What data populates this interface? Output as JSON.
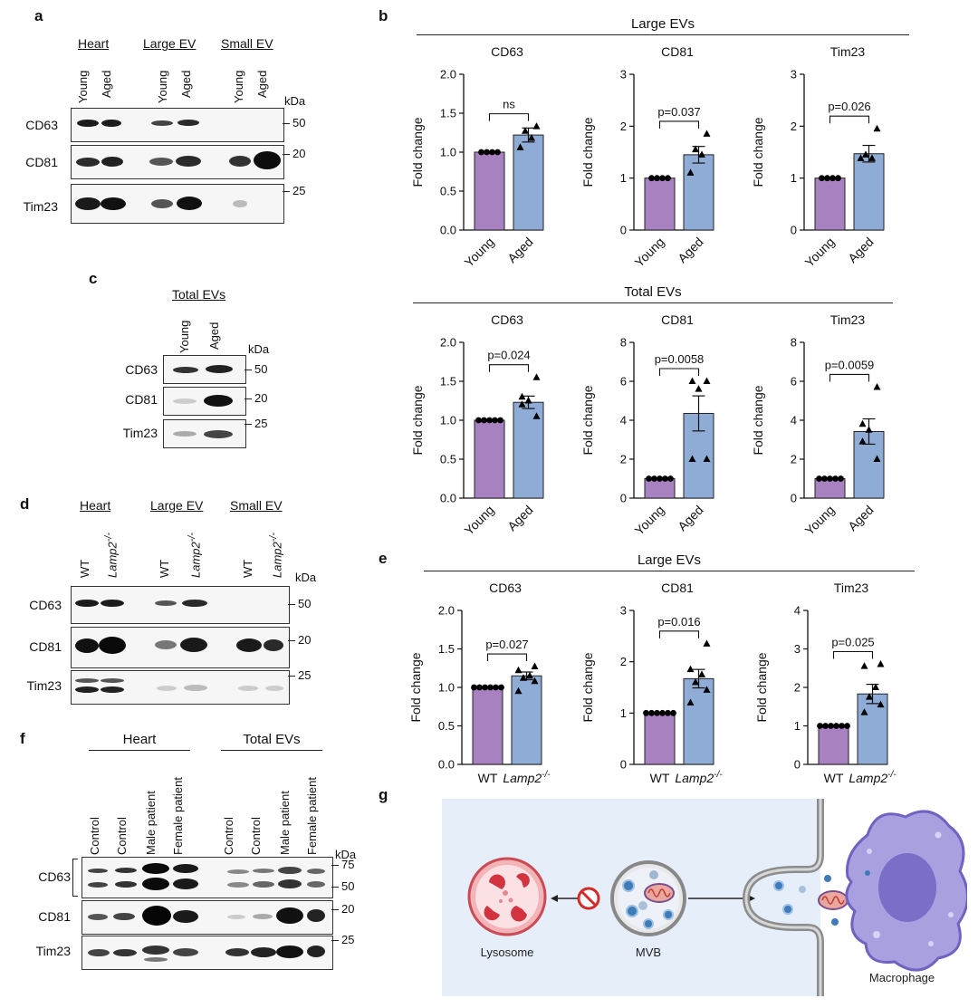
{
  "panels": {
    "a": "a",
    "b": "b",
    "c": "c",
    "d": "d",
    "e": "e",
    "f": "f",
    "g": "g"
  },
  "panel_a": {
    "groups": [
      "Heart",
      "Large EV",
      "Small EV"
    ],
    "lanes": [
      "Young",
      "Aged",
      "Young",
      "Aged",
      "Young",
      "Aged"
    ],
    "proteins": [
      "CD63",
      "CD81",
      "Tim23"
    ],
    "kda_label": "kDa",
    "markers": [
      "50",
      "20",
      "25"
    ]
  },
  "panel_c": {
    "title": "Total EVs",
    "lanes": [
      "Young",
      "Aged"
    ],
    "proteins": [
      "CD63",
      "CD81",
      "Tim23"
    ],
    "kda_label": "kDa",
    "markers": [
      "50",
      "20",
      "25"
    ]
  },
  "panel_d": {
    "groups": [
      "Heart",
      "Large EV",
      "Small EV"
    ],
    "lanes": [
      "WT",
      "Lamp2",
      "WT",
      "Lamp2",
      "WT",
      "Lamp2"
    ],
    "superscript": "-/-",
    "proteins": [
      "CD63",
      "CD81",
      "Tim23"
    ],
    "kda_label": "kDa",
    "markers": [
      "50",
      "20",
      "25"
    ]
  },
  "panel_f": {
    "groups": [
      "Heart",
      "Total EVs"
    ],
    "lanes": [
      "Control",
      "Control",
      "Male patient",
      "Female patient",
      "Control",
      "Control",
      "Male patient",
      "Female patient"
    ],
    "proteins": [
      "CD63",
      "CD81",
      "Tim23"
    ],
    "kda_label": "kDa",
    "markers": [
      "75",
      "50",
      "20",
      "25"
    ]
  },
  "panel_b": {
    "large_title": "Large EVs",
    "total_title": "Total EVs"
  },
  "panel_e": {
    "title": "Large EVs"
  },
  "panel_g": {
    "lysosome": "Lysosome",
    "mvb": "MVB",
    "macrophage": "Macrophage"
  },
  "chart_data": [
    {
      "type": "bar",
      "panel": "b",
      "group": "Large EVs",
      "title": "CD63",
      "ylabel": "Fold change",
      "categories": [
        "Young",
        "Aged"
      ],
      "values": [
        1.0,
        1.22
      ],
      "sem": [
        0,
        0.09
      ],
      "ylim": [
        0,
        2.0
      ],
      "yticks": [
        "0.0",
        "0.5",
        "1.0",
        "1.5",
        "2.0"
      ],
      "significance": "ns",
      "points": [
        [
          1.0,
          1.0,
          1.0,
          1.0
        ],
        [
          1.33,
          1.27,
          1.18,
          1.06
        ]
      ],
      "colors": [
        "#a882c0",
        "#8facd6"
      ]
    },
    {
      "type": "bar",
      "panel": "b",
      "group": "Large EVs",
      "title": "CD81",
      "ylabel": "Fold change",
      "categories": [
        "Young",
        "Aged"
      ],
      "values": [
        1.0,
        1.45
      ],
      "sem": [
        0,
        0.16
      ],
      "ylim": [
        0,
        3
      ],
      "yticks": [
        "0",
        "1",
        "2",
        "3"
      ],
      "significance": "p=0.037",
      "points": [
        [
          1.0,
          1.0,
          1.0,
          1.0
        ],
        [
          1.85,
          1.55,
          1.45,
          1.1
        ]
      ],
      "colors": [
        "#a882c0",
        "#8facd6"
      ]
    },
    {
      "type": "bar",
      "panel": "b",
      "group": "Large EVs",
      "title": "Tim23",
      "ylabel": "Fold change",
      "categories": [
        "Young",
        "Aged"
      ],
      "values": [
        1.0,
        1.47
      ],
      "sem": [
        0,
        0.16
      ],
      "ylim": [
        0,
        3
      ],
      "yticks": [
        "0",
        "1",
        "2",
        "3"
      ],
      "significance": "p=0.026",
      "points": [
        [
          1.0,
          1.0,
          1.0,
          1.0
        ],
        [
          1.95,
          1.45,
          1.38,
          1.38
        ]
      ],
      "colors": [
        "#a882c0",
        "#8facd6"
      ]
    },
    {
      "type": "bar",
      "panel": "b",
      "group": "Total EVs",
      "title": "CD63",
      "ylabel": "Fold change",
      "categories": [
        "Young",
        "Aged"
      ],
      "values": [
        1.0,
        1.23
      ],
      "sem": [
        0,
        0.08
      ],
      "ylim": [
        0,
        2.0
      ],
      "yticks": [
        "0.0",
        "0.5",
        "1.0",
        "1.5",
        "2.0"
      ],
      "significance": "p=0.024",
      "points": [
        [
          1.0,
          1.0,
          1.0,
          1.0,
          1.0
        ],
        [
          1.55,
          1.3,
          1.25,
          1.2,
          1.05
        ]
      ],
      "colors": [
        "#a882c0",
        "#8facd6"
      ]
    },
    {
      "type": "bar",
      "panel": "b",
      "group": "Total EVs",
      "title": "CD81",
      "ylabel": "Fold change",
      "categories": [
        "Young",
        "Aged"
      ],
      "values": [
        1.0,
        4.35
      ],
      "sem": [
        0,
        0.9
      ],
      "ylim": [
        0,
        8
      ],
      "yticks": [
        "0",
        "2",
        "4",
        "6",
        "8"
      ],
      "significance": "p=0.0058",
      "points": [
        [
          1.0,
          1.0,
          1.0,
          1.0,
          1.0
        ],
        [
          6.0,
          6.0,
          5.6,
          2.0,
          2.0
        ]
      ],
      "colors": [
        "#a882c0",
        "#8facd6"
      ]
    },
    {
      "type": "bar",
      "panel": "b",
      "group": "Total EVs",
      "title": "Tim23",
      "ylabel": "Fold change",
      "categories": [
        "Young",
        "Aged"
      ],
      "values": [
        1.0,
        3.42
      ],
      "sem": [
        0,
        0.65
      ],
      "ylim": [
        0,
        8
      ],
      "yticks": [
        "0",
        "2",
        "4",
        "6",
        "8"
      ],
      "significance": "p=0.0059",
      "points": [
        [
          1.0,
          1.0,
          1.0,
          1.0,
          1.0
        ],
        [
          5.7,
          3.8,
          3.5,
          2.9,
          2.0
        ]
      ],
      "colors": [
        "#a882c0",
        "#8facd6"
      ]
    },
    {
      "type": "bar",
      "panel": "e",
      "group": "Large EVs",
      "title": "CD63",
      "ylabel": "Fold change",
      "categories": [
        "WT",
        "Lamp2-/-"
      ],
      "values": [
        1.0,
        1.15
      ],
      "sem": [
        0,
        0.05
      ],
      "ylim": [
        0,
        2.0
      ],
      "yticks": [
        "0.0",
        "0.5",
        "1.0",
        "1.5",
        "2.0"
      ],
      "significance": "p=0.027",
      "points": [
        [
          1.0,
          1.0,
          1.0,
          1.0,
          1.0,
          1.0
        ],
        [
          1.27,
          1.22,
          1.15,
          1.12,
          1.08,
          0.95
        ]
      ],
      "colors": [
        "#a882c0",
        "#8facd6"
      ]
    },
    {
      "type": "bar",
      "panel": "e",
      "group": "Large EVs",
      "title": "CD81",
      "ylabel": "Fold change",
      "categories": [
        "WT",
        "Lamp2-/-"
      ],
      "values": [
        1.0,
        1.67
      ],
      "sem": [
        0,
        0.18
      ],
      "ylim": [
        0,
        3
      ],
      "yticks": [
        "0",
        "1",
        "2",
        "3"
      ],
      "significance": "p=0.016",
      "points": [
        [
          1.0,
          1.0,
          1.0,
          1.0,
          1.0,
          1.0
        ],
        [
          2.35,
          1.85,
          1.75,
          1.6,
          1.45,
          1.2
        ]
      ],
      "colors": [
        "#a882c0",
        "#8facd6"
      ]
    },
    {
      "type": "bar",
      "panel": "e",
      "group": "Large EVs",
      "title": "Tim23",
      "ylabel": "Fold change",
      "categories": [
        "WT",
        "Lamp2-/-"
      ],
      "values": [
        1.0,
        1.83
      ],
      "sem": [
        0,
        0.25
      ],
      "ylim": [
        0,
        4
      ],
      "yticks": [
        "0",
        "1",
        "2",
        "3",
        "4"
      ],
      "significance": "p=0.025",
      "points": [
        [
          1.0,
          1.0,
          1.0,
          1.0,
          1.0,
          1.0
        ],
        [
          2.6,
          2.55,
          2.0,
          1.75,
          1.55,
          1.35
        ]
      ],
      "colors": [
        "#a882c0",
        "#8facd6"
      ]
    }
  ]
}
